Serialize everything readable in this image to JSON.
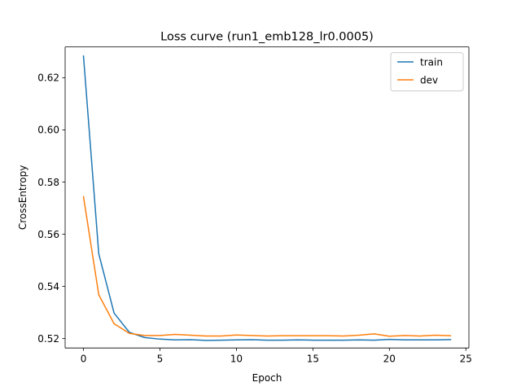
{
  "chart_data": {
    "type": "line",
    "title": "Loss curve (run1_emb128_lr0.0005)",
    "xlabel": "Epoch",
    "ylabel": "CrossEntropy",
    "xlim": [
      -1.2,
      25.2
    ],
    "ylim": [
      0.5164,
      0.6318
    ],
    "xticks": [
      0,
      5,
      10,
      15,
      20,
      25
    ],
    "yticks": [
      0.52,
      0.54,
      0.56,
      0.58,
      0.6,
      0.62
    ],
    "x": [
      0,
      1,
      2,
      3,
      4,
      5,
      6,
      7,
      8,
      9,
      10,
      11,
      12,
      13,
      14,
      15,
      16,
      17,
      18,
      19,
      20,
      21,
      22,
      23,
      24
    ],
    "legend": {
      "position": "upper right"
    },
    "grid": false,
    "series": [
      {
        "name": "train",
        "color": "#1f77b4",
        "values": [
          0.6283,
          0.5525,
          0.5298,
          0.5224,
          0.5204,
          0.5198,
          0.5195,
          0.5196,
          0.5193,
          0.5194,
          0.5195,
          0.5196,
          0.5194,
          0.5194,
          0.5195,
          0.5194,
          0.5194,
          0.5194,
          0.5195,
          0.5194,
          0.5197,
          0.5195,
          0.5195,
          0.5195,
          0.5196
        ]
      },
      {
        "name": "dev",
        "color": "#ff7f0e",
        "values": [
          0.5744,
          0.5368,
          0.5257,
          0.522,
          0.5212,
          0.5212,
          0.5216,
          0.5213,
          0.521,
          0.521,
          0.5214,
          0.5212,
          0.521,
          0.5211,
          0.5211,
          0.5211,
          0.5211,
          0.521,
          0.5213,
          0.5218,
          0.5209,
          0.5212,
          0.521,
          0.5213,
          0.5211
        ]
      }
    ]
  }
}
